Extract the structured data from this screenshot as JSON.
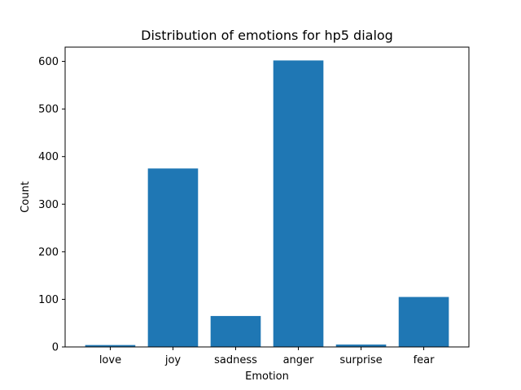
{
  "chart_data": {
    "type": "bar",
    "title": "Distribution of emotions for hp5 dialog",
    "xlabel": "Emotion",
    "ylabel": "Count",
    "categories": [
      "love",
      "joy",
      "sadness",
      "anger",
      "surprise",
      "fear"
    ],
    "values": [
      4,
      375,
      65,
      602,
      5,
      105
    ],
    "ylim": [
      0,
      630
    ],
    "yticks": [
      0,
      100,
      200,
      300,
      400,
      500,
      600
    ],
    "bar_color": "#1f77b4",
    "grid": false
  }
}
